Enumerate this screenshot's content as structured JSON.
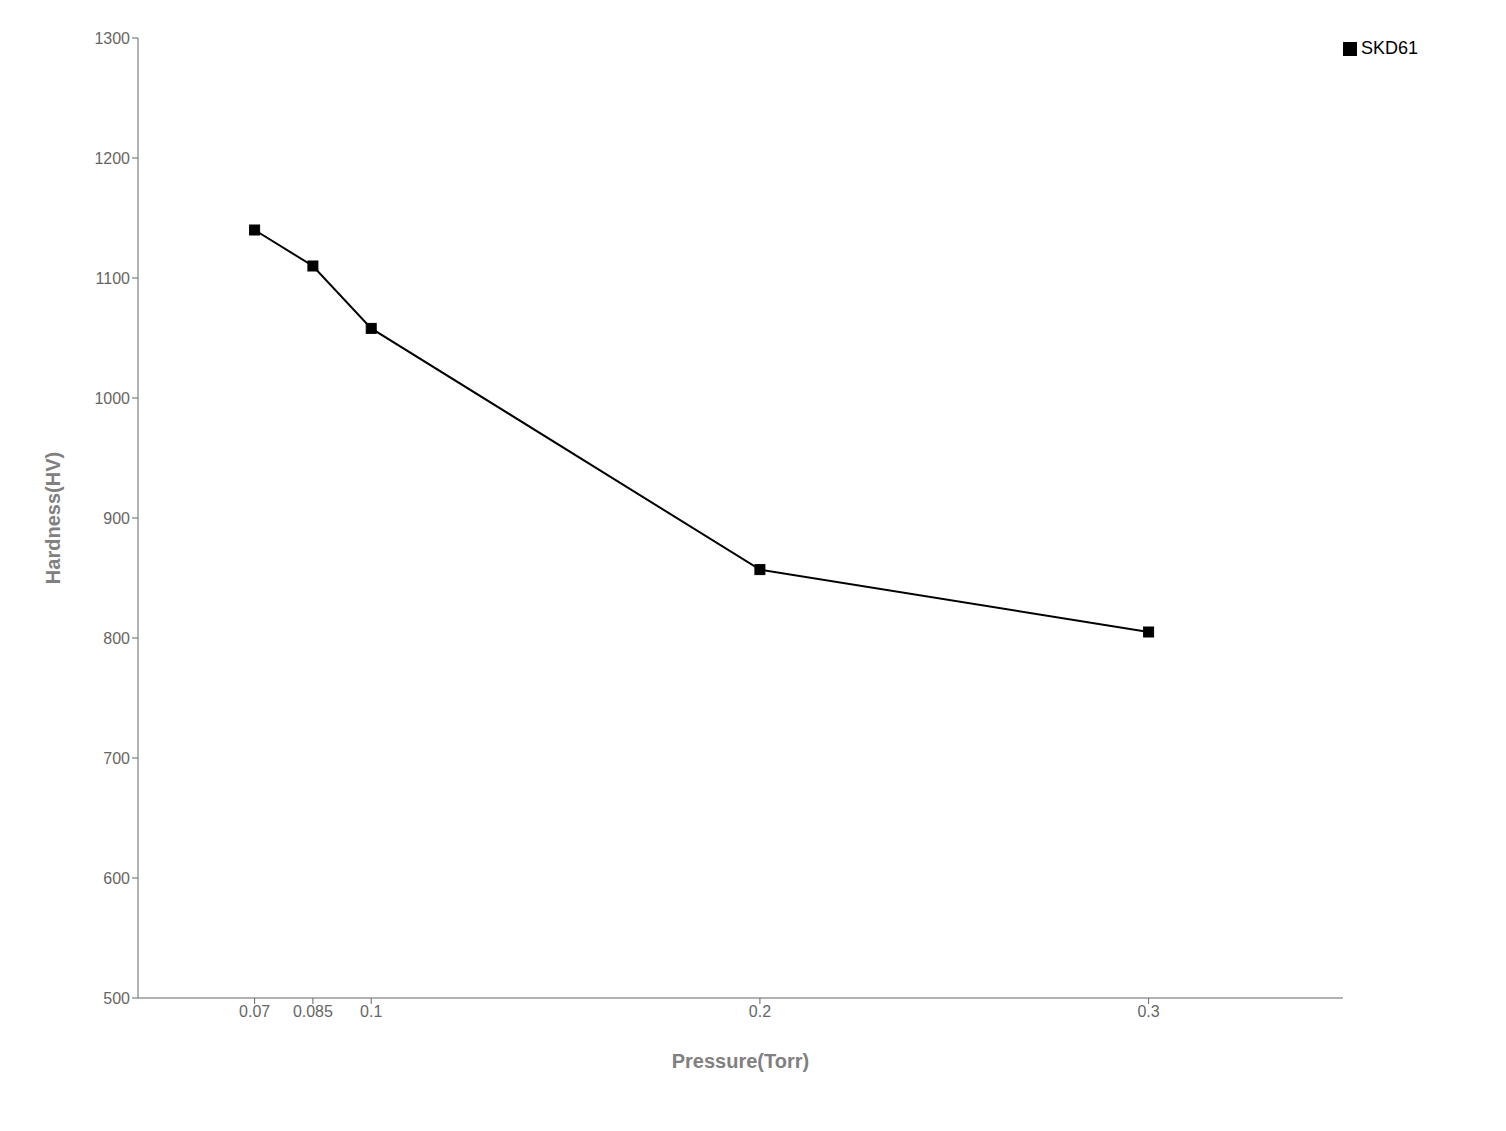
{
  "chart_data": {
    "type": "line",
    "x": [
      0.07,
      0.085,
      0.1,
      0.2,
      0.3
    ],
    "series": [
      {
        "name": "SKD61",
        "color": "#000000",
        "marker": "square",
        "values": [
          1140,
          1110,
          1058,
          857,
          805
        ]
      }
    ],
    "xlabel": "Pressure(Torr)",
    "ylabel": "Hardness(HV)",
    "xlim": [
      0.04,
      0.35
    ],
    "xticks": [
      0.07,
      0.085,
      0.1,
      0.2,
      0.3
    ],
    "ylim": [
      500,
      1300
    ],
    "yticks": [
      500,
      600,
      700,
      800,
      900,
      1000,
      1100,
      1200,
      1300
    ],
    "legend": "upper right",
    "grid": false
  }
}
